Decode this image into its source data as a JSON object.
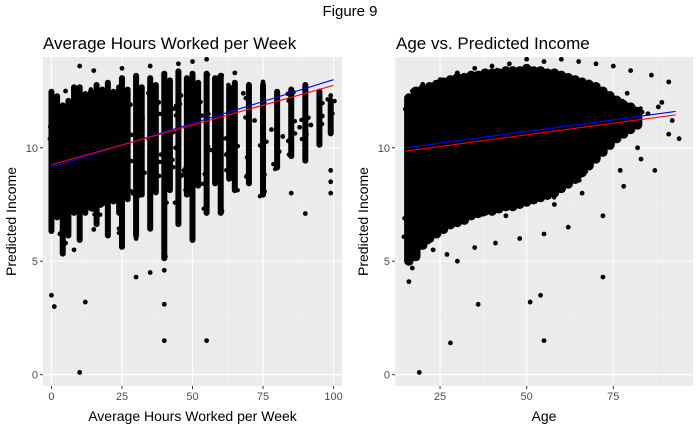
{
  "figure_title": "Figure 9",
  "chart_data": [
    {
      "type": "scatter",
      "title": "Average Hours Worked per Week",
      "xlabel": "Average Hours Worked per Week",
      "ylabel": "Predicted Income",
      "xlim": [
        -3,
        103
      ],
      "ylim": [
        -0.5,
        14.0
      ],
      "xticks": [
        0,
        25,
        50,
        75,
        100
      ],
      "yticks": [
        0,
        5,
        10
      ],
      "grid": true,
      "legend": "none",
      "point_color": "#000000",
      "panel_bg": "#ebebeb",
      "points": [
        [
          0,
          3.5
        ],
        [
          1,
          3.0
        ],
        [
          10,
          0.1
        ],
        [
          12,
          3.2
        ],
        [
          35,
          4.5
        ],
        [
          40,
          4.6
        ],
        [
          40,
          3.1
        ],
        [
          40,
          1.5
        ],
        [
          55,
          1.5
        ],
        [
          10,
          13.6
        ],
        [
          15,
          13.4
        ],
        [
          25,
          13.5
        ],
        [
          35,
          13.6
        ],
        [
          45,
          13.7
        ],
        [
          50,
          13.8
        ],
        [
          55,
          13.9
        ],
        [
          60,
          13.2
        ],
        [
          65,
          13.3
        ],
        [
          70,
          12.8
        ],
        [
          75,
          12.9
        ],
        [
          80,
          12.0
        ],
        [
          85,
          11.5
        ],
        [
          90,
          12.3
        ],
        [
          95,
          12.5
        ],
        [
          99,
          12.3
        ],
        [
          99,
          9.0
        ],
        [
          99,
          8.5
        ],
        [
          99,
          8.0
        ],
        [
          90,
          7.1
        ],
        [
          85,
          8.0
        ],
        [
          80,
          9.8
        ],
        [
          75,
          8.5
        ],
        [
          70,
          9.5
        ],
        [
          65,
          9.3
        ],
        [
          60,
          7.2
        ],
        [
          65,
          9.0
        ],
        [
          55,
          7.5
        ],
        [
          50,
          8.0
        ],
        [
          45,
          7.5
        ],
        [
          30,
          6.0
        ],
        [
          20,
          6.5
        ],
        [
          15,
          6.4
        ],
        [
          5,
          5.8
        ],
        [
          8,
          5.5
        ],
        [
          3,
          6.2
        ],
        [
          30,
          4.3
        ],
        [
          58,
          12.8
        ],
        [
          48,
          12.5
        ],
        [
          42,
          12.2
        ],
        [
          38,
          12.0
        ],
        [
          20,
          12.1
        ],
        [
          5,
          12.5
        ],
        [
          2,
          11.8
        ],
        [
          7,
          11.5
        ],
        [
          28,
          11.9
        ],
        [
          68,
          12.4
        ],
        [
          72,
          11.2
        ],
        [
          78,
          10.8
        ],
        [
          82,
          10.5
        ],
        [
          88,
          10.9
        ],
        [
          92,
          11.0
        ],
        [
          95,
          10.2
        ],
        [
          60,
          10.5
        ],
        [
          52,
          11.0
        ],
        [
          44,
          10.0
        ],
        [
          36,
          9.8
        ],
        [
          24,
          9.6
        ],
        [
          16,
          9.2
        ],
        [
          9,
          9.0
        ],
        [
          4,
          8.8
        ],
        [
          1,
          8.5
        ],
        [
          11,
          8.2
        ],
        [
          21,
          8.7
        ],
        [
          33,
          8.9
        ],
        [
          41,
          9.3
        ],
        [
          47,
          9.0
        ],
        [
          62,
          9.7
        ],
        [
          74,
          10.1
        ],
        [
          84,
          10.3
        ],
        [
          96,
          11.4
        ]
      ],
      "columns": [
        {
          "x": 0,
          "y": [
            6.2,
            12.6
          ]
        },
        {
          "x": 2,
          "y": [
            6.8,
            12.4
          ]
        },
        {
          "x": 4,
          "y": [
            5.2,
            12.0
          ]
        },
        {
          "x": 6,
          "y": [
            6.0,
            12.2
          ]
        },
        {
          "x": 8,
          "y": [
            7.0,
            12.8
          ]
        },
        {
          "x": 10,
          "y": [
            5.8,
            12.8
          ]
        },
        {
          "x": 12,
          "y": [
            7.0,
            12.5
          ]
        },
        {
          "x": 14,
          "y": [
            7.2,
            12.6
          ]
        },
        {
          "x": 16,
          "y": [
            6.5,
            12.9
          ]
        },
        {
          "x": 18,
          "y": [
            7.4,
            12.7
          ]
        },
        {
          "x": 20,
          "y": [
            6.0,
            13.0
          ]
        },
        {
          "x": 22,
          "y": [
            7.5,
            12.6
          ]
        },
        {
          "x": 24,
          "y": [
            7.0,
            12.8
          ]
        },
        {
          "x": 25,
          "y": [
            5.5,
            13.2
          ]
        },
        {
          "x": 27,
          "y": [
            7.6,
            12.7
          ]
        },
        {
          "x": 30,
          "y": [
            6.0,
            13.3
          ]
        },
        {
          "x": 32,
          "y": [
            7.8,
            12.8
          ]
        },
        {
          "x": 35,
          "y": [
            6.3,
            13.2
          ]
        },
        {
          "x": 37,
          "y": [
            7.9,
            12.9
          ]
        },
        {
          "x": 40,
          "y": [
            5.0,
            13.4
          ]
        },
        {
          "x": 42,
          "y": [
            8.0,
            13.1
          ]
        },
        {
          "x": 45,
          "y": [
            6.5,
            13.5
          ]
        },
        {
          "x": 48,
          "y": [
            7.8,
            13.2
          ]
        },
        {
          "x": 50,
          "y": [
            5.8,
            13.4
          ]
        },
        {
          "x": 52,
          "y": [
            8.2,
            13.0
          ]
        },
        {
          "x": 55,
          "y": [
            7.0,
            13.4
          ]
        },
        {
          "x": 58,
          "y": [
            8.3,
            13.2
          ]
        },
        {
          "x": 60,
          "y": [
            7.0,
            13.3
          ]
        },
        {
          "x": 63,
          "y": [
            8.5,
            12.8
          ]
        },
        {
          "x": 65,
          "y": [
            8.0,
            13.0
          ]
        },
        {
          "x": 70,
          "y": [
            8.3,
            12.9
          ]
        },
        {
          "x": 75,
          "y": [
            7.8,
            12.9
          ]
        },
        {
          "x": 80,
          "y": [
            9.0,
            12.6
          ]
        },
        {
          "x": 85,
          "y": [
            9.5,
            12.7
          ]
        },
        {
          "x": 90,
          "y": [
            9.3,
            12.9
          ]
        },
        {
          "x": 95,
          "y": [
            10.0,
            12.6
          ]
        },
        {
          "x": 99,
          "y": [
            10.5,
            12.2
          ]
        }
      ],
      "fit_lines": [
        {
          "color": "#0000ff",
          "x": [
            0,
            100
          ],
          "y": [
            9.15,
            13.0
          ]
        },
        {
          "color": "#ff0000",
          "x": [
            0,
            100
          ],
          "y": [
            9.25,
            12.75
          ]
        }
      ]
    },
    {
      "type": "scatter",
      "title": "Age vs. Predicted Income",
      "xlabel": "Age",
      "ylabel": "Predicted Income",
      "xlim": [
        12,
        98
      ],
      "ylim": [
        -0.5,
        14.0
      ],
      "xticks": [
        25,
        50,
        75
      ],
      "yticks": [
        0,
        5,
        10
      ],
      "grid": true,
      "legend": "none",
      "point_color": "#000000",
      "panel_bg": "#ebebeb",
      "points": [
        [
          19,
          0.1
        ],
        [
          28,
          1.4
        ],
        [
          55,
          1.5
        ],
        [
          36,
          3.1
        ],
        [
          51,
          3.2
        ],
        [
          54,
          3.5
        ],
        [
          72,
          4.3
        ],
        [
          16,
          4.1
        ],
        [
          17,
          4.7
        ],
        [
          23,
          5.5
        ],
        [
          27,
          5.3
        ],
        [
          30,
          5.0
        ],
        [
          22,
          6.0
        ],
        [
          26,
          6.3
        ],
        [
          35,
          5.6
        ],
        [
          41,
          5.8
        ],
        [
          48,
          6.0
        ],
        [
          55,
          6.2
        ],
        [
          62,
          6.5
        ],
        [
          72,
          7.0
        ],
        [
          78,
          8.3
        ],
        [
          83,
          9.5
        ],
        [
          87,
          9.0
        ],
        [
          91,
          10.6
        ],
        [
          92,
          11.2
        ],
        [
          94,
          10.4
        ],
        [
          89,
          12.0
        ],
        [
          91,
          12.9
        ],
        [
          86,
          13.2
        ],
        [
          80,
          13.4
        ],
        [
          75,
          13.6
        ],
        [
          70,
          13.7
        ],
        [
          65,
          13.8
        ],
        [
          60,
          13.9
        ],
        [
          55,
          13.8
        ],
        [
          50,
          13.9
        ],
        [
          45,
          13.7
        ],
        [
          40,
          13.6
        ],
        [
          35,
          13.5
        ],
        [
          30,
          13.3
        ],
        [
          25,
          13.0
        ],
        [
          20,
          12.8
        ],
        [
          17,
          12.5
        ],
        [
          15,
          11.7
        ],
        [
          16,
          8.0
        ],
        [
          18,
          7.5
        ],
        [
          20,
          7.0
        ],
        [
          24,
          7.8
        ],
        [
          33,
          7.2
        ],
        [
          44,
          7.0
        ],
        [
          58,
          7.5
        ],
        [
          66,
          8.0
        ],
        [
          77,
          9.0
        ],
        [
          82,
          10.0
        ],
        [
          85,
          11.5
        ],
        [
          88,
          11.8
        ],
        [
          79,
          12.4
        ],
        [
          68,
          12.9
        ],
        [
          57,
          13.1
        ],
        [
          46,
          13.0
        ],
        [
          37,
          12.8
        ],
        [
          28,
          12.5
        ],
        [
          21,
          12.2
        ],
        [
          52,
          12.6
        ],
        [
          42,
          11.5
        ],
        [
          63,
          11.2
        ],
        [
          73,
          11.8
        ],
        [
          31,
          10.5
        ],
        [
          19,
          9.8
        ],
        [
          47,
          9.5
        ]
      ],
      "columns": [
        {
          "x": 16,
          "y": [
            4.8,
            12.4
          ]
        },
        {
          "x": 18,
          "y": [
            5.0,
            12.7
          ]
        },
        {
          "x": 20,
          "y": [
            5.5,
            12.8
          ]
        },
        {
          "x": 22,
          "y": [
            5.8,
            12.9
          ]
        },
        {
          "x": 24,
          "y": [
            6.0,
            13.0
          ]
        },
        {
          "x": 26,
          "y": [
            6.2,
            13.1
          ]
        },
        {
          "x": 28,
          "y": [
            6.4,
            13.2
          ]
        },
        {
          "x": 30,
          "y": [
            6.5,
            13.3
          ]
        },
        {
          "x": 32,
          "y": [
            6.6,
            13.3
          ]
        },
        {
          "x": 34,
          "y": [
            6.8,
            13.4
          ]
        },
        {
          "x": 36,
          "y": [
            6.9,
            13.4
          ]
        },
        {
          "x": 38,
          "y": [
            7.0,
            13.5
          ]
        },
        {
          "x": 40,
          "y": [
            7.0,
            13.5
          ]
        },
        {
          "x": 42,
          "y": [
            7.1,
            13.5
          ]
        },
        {
          "x": 44,
          "y": [
            7.2,
            13.6
          ]
        },
        {
          "x": 46,
          "y": [
            7.2,
            13.6
          ]
        },
        {
          "x": 48,
          "y": [
            7.3,
            13.6
          ]
        },
        {
          "x": 50,
          "y": [
            7.4,
            13.7
          ]
        },
        {
          "x": 52,
          "y": [
            7.5,
            13.6
          ]
        },
        {
          "x": 54,
          "y": [
            7.6,
            13.6
          ]
        },
        {
          "x": 56,
          "y": [
            7.7,
            13.5
          ]
        },
        {
          "x": 58,
          "y": [
            7.8,
            13.5
          ]
        },
        {
          "x": 60,
          "y": [
            8.0,
            13.4
          ]
        },
        {
          "x": 62,
          "y": [
            8.2,
            13.3
          ]
        },
        {
          "x": 64,
          "y": [
            8.4,
            13.2
          ]
        },
        {
          "x": 66,
          "y": [
            8.7,
            13.1
          ]
        },
        {
          "x": 68,
          "y": [
            9.0,
            13.0
          ]
        },
        {
          "x": 70,
          "y": [
            9.3,
            12.9
          ]
        },
        {
          "x": 72,
          "y": [
            9.6,
            12.7
          ]
        },
        {
          "x": 74,
          "y": [
            9.9,
            12.5
          ]
        },
        {
          "x": 76,
          "y": [
            10.2,
            12.3
          ]
        },
        {
          "x": 78,
          "y": [
            10.4,
            12.1
          ]
        },
        {
          "x": 80,
          "y": [
            10.6,
            12.0
          ]
        },
        {
          "x": 82,
          "y": [
            10.8,
            11.8
          ]
        }
      ],
      "fit_lines": [
        {
          "color": "#0000ff",
          "x": [
            15,
            93
          ],
          "y": [
            10.0,
            11.6
          ]
        },
        {
          "color": "#ff0000",
          "x": [
            15,
            93
          ],
          "y": [
            9.85,
            11.45
          ]
        }
      ]
    }
  ]
}
